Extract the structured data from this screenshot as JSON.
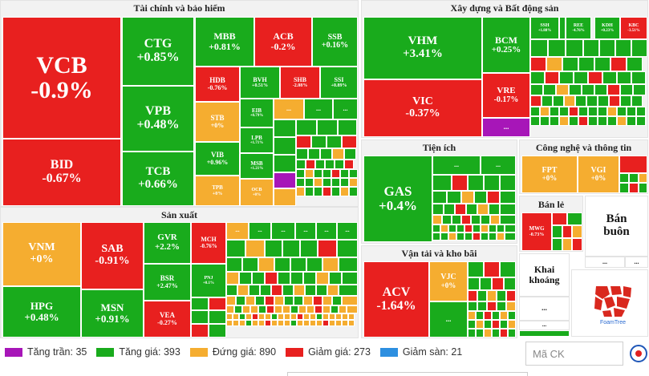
{
  "colors": {
    "ceiling": "#a716b8",
    "up": "#19ab1c",
    "flat": "#f5ad30",
    "down": "#e8201f",
    "floor": "#2d8fe0"
  },
  "sectors": {
    "finance": "Tài chính và bảo hiểm",
    "realestate": "Xây dựng và Bất động sản",
    "manufacturing": "Sản xuất",
    "utilities": "Tiện ích",
    "tech": "Công nghệ và thông tin",
    "retail": "Bán lẻ",
    "wholesale": "Bán buôn",
    "transport": "Vận tải và kho bãi",
    "mining": "Khai khoáng"
  },
  "stocks": {
    "vcb": {
      "symbol": "VCB",
      "change": "-0.9%"
    },
    "bid": {
      "symbol": "BID",
      "change": "-0.67%"
    },
    "ctg": {
      "symbol": "CTG",
      "change": "+0.85%"
    },
    "vpb": {
      "symbol": "VPB",
      "change": "+0.48%"
    },
    "tcb": {
      "symbol": "TCB",
      "change": "+0.66%"
    },
    "mbb": {
      "symbol": "MBB",
      "change": "+0.81%"
    },
    "acb": {
      "symbol": "ACB",
      "change": "-0.2%"
    },
    "ssb": {
      "symbol": "SSB",
      "change": "+0.16%"
    },
    "hdb": {
      "symbol": "HDB",
      "change": "-0.76%"
    },
    "bvh": {
      "symbol": "BVH",
      "change": "+0.51%"
    },
    "shb": {
      "symbol": "SHB",
      "change": "-2.08%"
    },
    "ssi": {
      "symbol": "SSI",
      "change": "+0.89%"
    },
    "stb": {
      "symbol": "STB",
      "change": "+0%"
    },
    "eib": {
      "symbol": "EIB",
      "change": "+0.79%"
    },
    "lpb": {
      "symbol": "LPB",
      "change": "+1.71%"
    },
    "vib": {
      "symbol": "VIB",
      "change": "+0.96%"
    },
    "msb": {
      "symbol": "MSB",
      "change": "+1.21%"
    },
    "tpb": {
      "symbol": "TPB",
      "change": "+0%"
    },
    "ocb": {
      "symbol": "OCB",
      "change": "+0%"
    },
    "vhm": {
      "symbol": "VHM",
      "change": "+3.41%"
    },
    "vic": {
      "symbol": "VIC",
      "change": "-0.37%"
    },
    "bcm": {
      "symbol": "BCM",
      "change": "+0.25%"
    },
    "vre": {
      "symbol": "VRE",
      "change": "-0.17%"
    },
    "ssh": {
      "symbol": "SSH",
      "change": "+1.88%"
    },
    "ree": {
      "symbol": "REE",
      "change": "-4.76%"
    },
    "kdh": {
      "symbol": "KDH",
      "change": "+0.23%"
    },
    "kbc": {
      "symbol": "KBC",
      "change": "-3.51%"
    },
    "vnm": {
      "symbol": "VNM",
      "change": "+0%"
    },
    "hpg": {
      "symbol": "HPG",
      "change": "+0.48%"
    },
    "sab": {
      "symbol": "SAB",
      "change": "-0.91%"
    },
    "msn": {
      "symbol": "MSN",
      "change": "+0.91%"
    },
    "gvr": {
      "symbol": "GVR",
      "change": "+2.2%"
    },
    "bsr": {
      "symbol": "BSR",
      "change": "+2.47%"
    },
    "vea": {
      "symbol": "VEA",
      "change": "-0.27%"
    },
    "mch": {
      "symbol": "MCH",
      "change": "-0.76%"
    },
    "pnj": {
      "symbol": "PNJ",
      "change": "+0.1%"
    },
    "gas": {
      "symbol": "GAS",
      "change": "+0.4%"
    },
    "fpt": {
      "symbol": "FPT",
      "change": "+0%"
    },
    "vgi": {
      "symbol": "VGI",
      "change": "+0%"
    },
    "mwg": {
      "symbol": "MWG",
      "change": "-0.73%"
    },
    "acv": {
      "symbol": "ACV",
      "change": "-1.64%"
    },
    "vjc": {
      "symbol": "VJC",
      "change": "+0%"
    }
  },
  "ellipsis": "...",
  "legend": [
    {
      "label": "Tăng trần: 35"
    },
    {
      "label": "Tăng giá: 393"
    },
    {
      "label": "Đứng giá: 890"
    },
    {
      "label": "Giảm giá: 273"
    },
    {
      "label": "Giảm sàn: 21"
    }
  ],
  "search": {
    "placeholder": "Mã CK"
  },
  "branding": {
    "foamtree_label": "FoamTree"
  }
}
